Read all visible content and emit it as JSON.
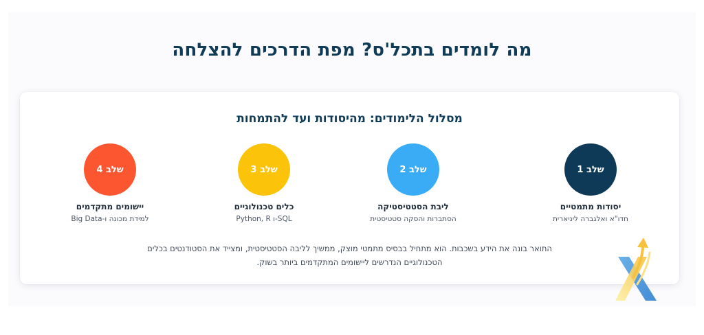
{
  "header": {
    "title": "מה לומדים בתכל'ס? מפת הדרכים להצלחה"
  },
  "roadmap": {
    "title": "מסלול הלימודים: מהיסודות ועד להתמחות",
    "steps": [
      {
        "badge": "שלב 1",
        "title": "יסודות מתמטיים",
        "subtitle": "חדו\"א ואלגברה ליניארית",
        "color": "#0e3a58"
      },
      {
        "badge": "שלב 2",
        "title": "ליבת הסטטיסטיקה",
        "subtitle": "הסתברות והסקה סטטיסטית",
        "color": "#3aabf5"
      },
      {
        "badge": "שלב 3",
        "title": "כלים טכנולוגיים",
        "subtitle": "Python, R ו-SQL",
        "color": "#fcc30b"
      },
      {
        "badge": "שלב 4",
        "title": "יישומים מתקדמים",
        "subtitle": "למידת מכונה ו-Big Data",
        "color": "#fc5630"
      }
    ],
    "description": "התואר בונה את הידע בשכבות. הוא מתחיל בבסיס מתמטי מוצק, ממשיך לליבה הסטטיסטית, ומצייד את הסטודנטים בכלים הטכנולוגיים הנדרשים ליישומים המתקדמים ביותר בשוק."
  },
  "logo": {
    "icon": "brand-x-arrow-logo-icon"
  }
}
